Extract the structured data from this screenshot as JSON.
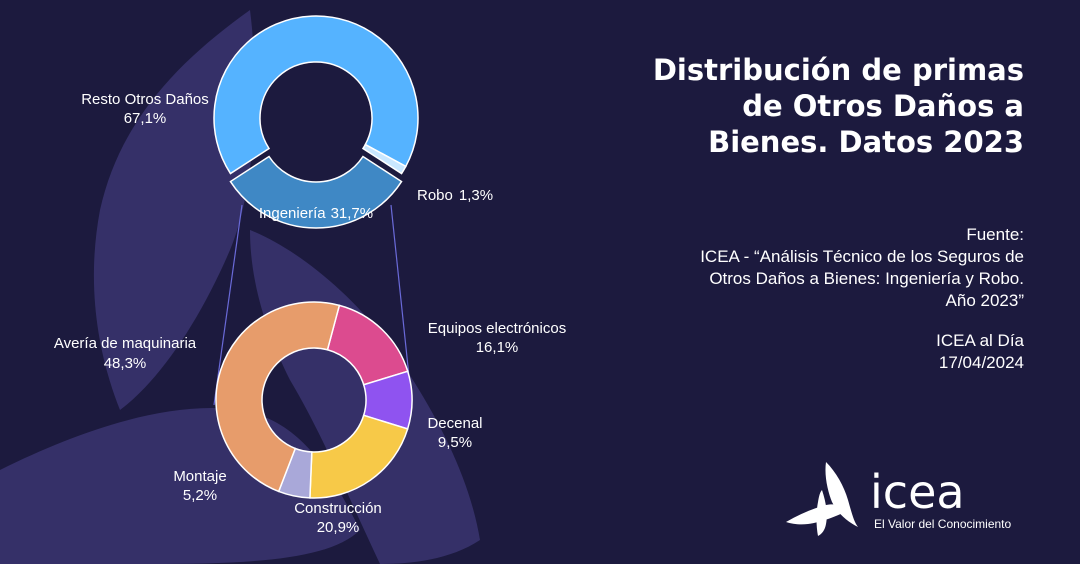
{
  "title_lines": [
    "Distribución de primas",
    "de Otros Daños a",
    "Bienes. Datos 2023"
  ],
  "source": {
    "label": "Fuente:",
    "lines": [
      "ICEA - “Análisis Técnico de los Seguros de",
      "Otros Daños a Bienes: Ingeniería y Robo.",
      "Año 2023”"
    ]
  },
  "issue": {
    "publication": "ICEA al Día",
    "date": "17/04/2024"
  },
  "brand": {
    "name": "icea",
    "tagline": "El Valor del Conocimiento"
  },
  "colors": {
    "background": "#1c1a3e",
    "blob": "#3a3570",
    "resto": "#55b3ff",
    "robo": "#c9e7ff",
    "ingenieria": "#3f88c5",
    "averia": "#e79c6b",
    "equipos": "#dc4b8f",
    "decenal": "#8f53f0",
    "construccion": "#f7c948",
    "montaje": "#a9a8d9",
    "connector": "#6a6ad8"
  },
  "chart_data": [
    {
      "type": "pie",
      "variant": "donut",
      "title": "",
      "slices": [
        {
          "key": "resto",
          "label": "Resto Otros Daños",
          "value": 67.1,
          "value_label": "67,1%"
        },
        {
          "key": "robo",
          "label": "Robo",
          "value": 1.3,
          "value_label": "1,3%"
        },
        {
          "key": "ingenieria",
          "label": "Ingeniería",
          "value": 31.7,
          "value_label": "31,7%"
        }
      ]
    },
    {
      "type": "pie",
      "variant": "donut",
      "title": "",
      "breakdown_of": "Ingeniería",
      "slices": [
        {
          "key": "equipos",
          "label": "Equipos electrónicos",
          "value": 16.1,
          "value_label": "16,1%"
        },
        {
          "key": "decenal",
          "label": "Decenal",
          "value": 9.5,
          "value_label": "9,5%"
        },
        {
          "key": "construccion",
          "label": "Construcción",
          "value": 20.9,
          "value_label": "20,9%"
        },
        {
          "key": "montaje",
          "label": "Montaje",
          "value": 5.2,
          "value_label": "5,2%"
        },
        {
          "key": "averia",
          "label": "Avería de maquinaria",
          "value": 48.3,
          "value_label": "48,3%"
        }
      ]
    }
  ]
}
